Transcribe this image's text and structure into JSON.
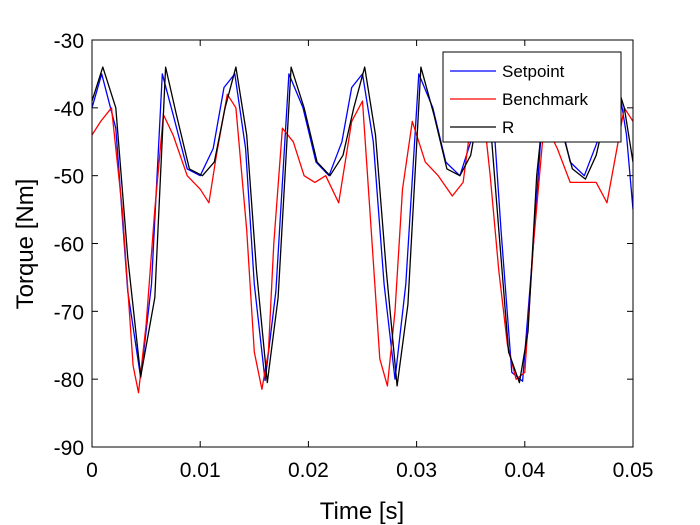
{
  "chart_data": {
    "type": "line",
    "title": "",
    "xlabel": "Time [s]",
    "ylabel": "Torque [Nm]",
    "xlim": [
      0,
      0.05
    ],
    "ylim": [
      -90,
      -30
    ],
    "xticks": [
      0,
      0.01,
      0.02,
      0.03,
      0.04,
      0.05
    ],
    "xtick_labels": [
      "0",
      "0.01",
      "0.02",
      "0.03",
      "0.04",
      "0.05"
    ],
    "yticks": [
      -90,
      -80,
      -70,
      -60,
      -50,
      -40,
      -30
    ],
    "ytick_labels": [
      "-90",
      "-80",
      "-70",
      "-60",
      "-50",
      "-40",
      "-30"
    ],
    "grid": false,
    "legend_position": "top-right",
    "series": [
      {
        "name": "Setpoint",
        "color": "#0000ff",
        "x": [
          0,
          0.0009,
          0.0022,
          0.0033,
          0.0045,
          0.0055,
          0.0065,
          0.0075,
          0.0088,
          0.01,
          0.0112,
          0.0122,
          0.0132,
          0.0142,
          0.015,
          0.016,
          0.017,
          0.0182,
          0.0195,
          0.0207,
          0.0219,
          0.0231,
          0.024,
          0.025,
          0.026,
          0.027,
          0.028,
          0.029,
          0.0302,
          0.0315,
          0.0327,
          0.034,
          0.035,
          0.036,
          0.037,
          0.0378,
          0.0388,
          0.0398,
          0.0408,
          0.0418,
          0.043,
          0.0442,
          0.0455,
          0.0467,
          0.0478,
          0.0487,
          0.0494,
          0.05
        ],
        "y": [
          -40,
          -35,
          -43,
          -67,
          -79.8,
          -66,
          -35,
          -41,
          -49,
          -50,
          -46,
          -37,
          -35,
          -46,
          -66,
          -80.2,
          -67,
          -35,
          -40,
          -48,
          -50,
          -45,
          -37,
          -35,
          -45,
          -66,
          -80,
          -66,
          -35,
          -40,
          -48,
          -50,
          -45,
          -36,
          -39,
          -58,
          -79,
          -80.3,
          -60,
          -37,
          -40,
          -48,
          -50,
          -45,
          -36,
          -37,
          -44,
          -55
        ]
      },
      {
        "name": "Benchmark",
        "color": "#ff0000",
        "x": [
          0,
          0.0008,
          0.0018,
          0.0028,
          0.0038,
          0.0043,
          0.005,
          0.0058,
          0.0066,
          0.0075,
          0.0088,
          0.01,
          0.0108,
          0.0115,
          0.0125,
          0.0133,
          0.0143,
          0.015,
          0.0157,
          0.0163,
          0.0168,
          0.0176,
          0.0186,
          0.0196,
          0.0206,
          0.0216,
          0.0228,
          0.024,
          0.025,
          0.0258,
          0.0266,
          0.0273,
          0.028,
          0.0287,
          0.0296,
          0.0308,
          0.032,
          0.0333,
          0.0343,
          0.0352,
          0.036,
          0.0368,
          0.0376,
          0.0384,
          0.0392,
          0.04,
          0.0408,
          0.0418,
          0.043,
          0.0442,
          0.0456,
          0.0466,
          0.0476,
          0.0484,
          0.0492,
          0.05
        ],
        "y": [
          -44,
          -42,
          -40,
          -55,
          -78,
          -82,
          -72,
          -55,
          -41,
          -44,
          -50,
          -52,
          -54,
          -47,
          -38,
          -40,
          -58,
          -76,
          -81.5,
          -76,
          -60,
          -43,
          -45,
          -50,
          -51,
          -50,
          -54,
          -42,
          -39,
          -58,
          -77,
          -81,
          -70,
          -52,
          -42,
          -48,
          -50,
          -53,
          -51,
          -40,
          -38,
          -50,
          -64,
          -75,
          -80,
          -79,
          -60,
          -42,
          -46,
          -51,
          -51,
          -51,
          -54,
          -47,
          -40,
          -42
        ]
      },
      {
        "name": "R",
        "color": "#000000",
        "x": [
          0,
          0.001,
          0.0022,
          0.0033,
          0.0045,
          0.0058,
          0.0068,
          0.0078,
          0.009,
          0.0102,
          0.0113,
          0.0123,
          0.0133,
          0.0143,
          0.0152,
          0.0162,
          0.0172,
          0.0184,
          0.0196,
          0.0208,
          0.022,
          0.0232,
          0.0242,
          0.0252,
          0.0262,
          0.0272,
          0.0282,
          0.0292,
          0.0304,
          0.0316,
          0.0328,
          0.034,
          0.035,
          0.036,
          0.0368,
          0.0376,
          0.0385,
          0.0395,
          0.0403,
          0.0411,
          0.042,
          0.0432,
          0.0444,
          0.0456,
          0.0466,
          0.0476,
          0.0484,
          0.0492,
          0.05
        ],
        "y": [
          -39,
          -34,
          -40,
          -62,
          -79.6,
          -68,
          -34,
          -41,
          -49,
          -50,
          -48,
          -40,
          -34,
          -44,
          -64,
          -80.5,
          -68,
          -34,
          -40,
          -48,
          -50,
          -47,
          -40,
          -34,
          -44,
          -64,
          -81,
          -69,
          -34,
          -41,
          -49,
          -50,
          -47,
          -38,
          -42,
          -58,
          -76,
          -80.5,
          -73,
          -50,
          -36,
          -42,
          -49,
          -50.5,
          -47,
          -40,
          -36,
          -40,
          -48
        ]
      }
    ]
  }
}
